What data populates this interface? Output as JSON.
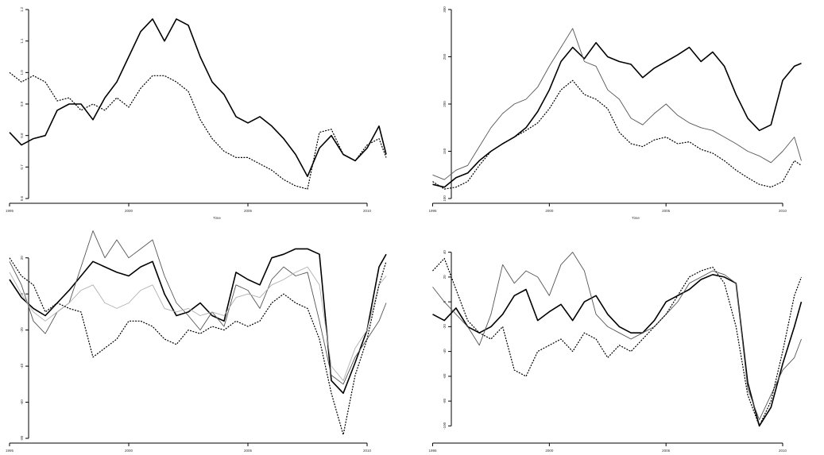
{
  "chart_data": [
    {
      "type": "line",
      "xlabel": "Time",
      "ylabel": "",
      "xlim": [
        1995.8,
        2011.6
      ],
      "ylim": [
        0.6,
        1.2
      ],
      "x_ticks": [
        1995,
        2000,
        2005,
        2010
      ],
      "x_tick_labels": [
        "1995",
        "2000",
        "2005",
        "2010"
      ],
      "y_ticks": [
        0.6,
        0.7,
        0.8,
        0.9,
        1.0,
        1.1,
        1.2
      ],
      "y_tick_labels": [
        "0.6",
        "0.7",
        "0.8",
        "0.9",
        "1.0",
        "1.1",
        "1.2"
      ],
      "grid": false,
      "legend": "none",
      "series": [
        {
          "style": "solid-bold",
          "color": "#000000",
          "x": [
            1995.0,
            1995.5,
            1996.0,
            1996.5,
            1997.0,
            1997.5,
            1998.0,
            1998.5,
            1999.0,
            1999.5,
            2000.0,
            2000.5,
            2001.0,
            2001.5,
            2002.0,
            2002.5,
            2003.0,
            2003.5,
            2004.0,
            2004.5,
            2005.0,
            2005.5,
            2006.0,
            2006.5,
            2007.0,
            2007.5,
            2008.0,
            2008.5,
            2009.0,
            2009.5,
            2010.0,
            2010.5,
            2010.8
          ],
          "y": [
            0.81,
            0.77,
            0.79,
            0.8,
            0.88,
            0.9,
            0.9,
            0.85,
            0.92,
            0.97,
            1.05,
            1.13,
            1.17,
            1.1,
            1.17,
            1.15,
            1.05,
            0.97,
            0.93,
            0.86,
            0.84,
            0.86,
            0.83,
            0.79,
            0.74,
            0.67,
            0.76,
            0.8,
            0.74,
            0.72,
            0.76,
            0.83,
            0.74
          ]
        },
        {
          "style": "dotted",
          "color": "#000000",
          "x": [
            1995.0,
            1995.5,
            1996.0,
            1996.5,
            1997.0,
            1997.5,
            1998.0,
            1998.5,
            1999.0,
            1999.5,
            2000.0,
            2000.5,
            2001.0,
            2001.5,
            2002.0,
            2002.5,
            2003.0,
            2003.5,
            2004.0,
            2004.5,
            2005.0,
            2005.5,
            2006.0,
            2006.5,
            2007.0,
            2007.5,
            2008.0,
            2008.5,
            2009.0,
            2009.5,
            2010.0,
            2010.5,
            2010.8
          ],
          "y": [
            1.0,
            0.97,
            0.99,
            0.97,
            0.91,
            0.92,
            0.88,
            0.9,
            0.88,
            0.92,
            0.89,
            0.95,
            0.99,
            0.99,
            0.97,
            0.94,
            0.85,
            0.79,
            0.75,
            0.73,
            0.73,
            0.71,
            0.69,
            0.66,
            0.64,
            0.63,
            0.81,
            0.82,
            0.74,
            0.72,
            0.77,
            0.79,
            0.73
          ]
        }
      ]
    },
    {
      "type": "line",
      "xlabel": "Time",
      "ylabel": "",
      "xlim": [
        1995.8,
        2011.6
      ],
      "ylim": [
        100,
        300
      ],
      "x_ticks": [
        1995,
        2000,
        2005,
        2010
      ],
      "x_tick_labels": [
        "1995",
        "2000",
        "2005",
        "2010"
      ],
      "y_ticks": [
        100,
        150,
        200,
        250,
        300
      ],
      "y_tick_labels": [
        "100",
        "150",
        "200",
        "250",
        "300"
      ],
      "grid": false,
      "legend": "none",
      "series": [
        {
          "style": "solid-bold",
          "color": "#000000",
          "x": [
            1995.0,
            1995.5,
            1996.0,
            1996.5,
            1997.0,
            1997.5,
            1998.0,
            1998.5,
            1999.0,
            1999.5,
            2000.0,
            2000.5,
            2001.0,
            2001.5,
            2002.0,
            2002.5,
            2003.0,
            2003.5,
            2004.0,
            2004.5,
            2005.0,
            2005.5,
            2006.0,
            2006.5,
            2007.0,
            2007.5,
            2008.0,
            2008.5,
            2009.0,
            2009.5,
            2010.0,
            2010.5,
            2010.8
          ],
          "y": [
            115,
            112,
            122,
            127,
            140,
            150,
            158,
            165,
            175,
            192,
            215,
            245,
            260,
            248,
            265,
            250,
            245,
            242,
            228,
            238,
            245,
            252,
            260,
            245,
            255,
            240,
            210,
            185,
            172,
            178,
            225,
            240,
            243
          ]
        },
        {
          "style": "solid-thin",
          "color": "#555555",
          "x": [
            1995.0,
            1995.5,
            1996.0,
            1996.5,
            1997.0,
            1997.5,
            1998.0,
            1998.5,
            1999.0,
            1999.5,
            2000.0,
            2000.5,
            2001.0,
            2001.5,
            2002.0,
            2002.5,
            2003.0,
            2003.5,
            2004.0,
            2004.5,
            2005.0,
            2005.5,
            2006.0,
            2006.5,
            2007.0,
            2007.5,
            2008.0,
            2008.5,
            2009.0,
            2009.5,
            2010.0,
            2010.5,
            2010.8
          ],
          "y": [
            125,
            120,
            130,
            135,
            155,
            175,
            190,
            200,
            205,
            218,
            240,
            260,
            280,
            245,
            240,
            215,
            205,
            185,
            178,
            190,
            200,
            188,
            180,
            175,
            172,
            165,
            158,
            150,
            145,
            138,
            150,
            165,
            140
          ]
        },
        {
          "style": "dotted",
          "color": "#000000",
          "x": [
            1995.0,
            1995.5,
            1996.0,
            1996.5,
            1997.0,
            1997.5,
            1998.0,
            1998.5,
            1999.0,
            1999.5,
            2000.0,
            2000.5,
            2001.0,
            2001.5,
            2002.0,
            2002.5,
            2003.0,
            2003.5,
            2004.0,
            2004.5,
            2005.0,
            2005.5,
            2006.0,
            2006.5,
            2007.0,
            2007.5,
            2008.0,
            2008.5,
            2009.0,
            2009.5,
            2010.0,
            2010.5,
            2010.8
          ],
          "y": [
            118,
            110,
            112,
            118,
            135,
            150,
            158,
            165,
            172,
            180,
            195,
            215,
            225,
            210,
            205,
            195,
            170,
            158,
            155,
            162,
            165,
            158,
            160,
            152,
            148,
            140,
            130,
            122,
            115,
            112,
            118,
            140,
            135
          ]
        }
      ]
    },
    {
      "type": "line",
      "xlabel": "",
      "ylabel": "",
      "xlim": [
        1995.8,
        2011.6
      ],
      "ylim": [
        -80,
        30
      ],
      "x_ticks": [
        1995,
        2000,
        2005,
        2010
      ],
      "x_tick_labels": [
        "1995",
        "2000",
        "2005",
        "2010"
      ],
      "y_ticks": [
        -80,
        -60,
        -40,
        -20,
        0,
        20
      ],
      "y_tick_labels": [
        "-80",
        "-60",
        "-40",
        "-20",
        "0",
        "20"
      ],
      "grid": false,
      "legend": "none",
      "series": [
        {
          "style": "solid-bold",
          "color": "#000000",
          "x": [
            1995.0,
            1995.5,
            1996.0,
            1996.5,
            1997.0,
            1997.5,
            1998.0,
            1998.5,
            1999.0,
            1999.5,
            2000.0,
            2000.5,
            2001.0,
            2001.5,
            2002.0,
            2002.5,
            2003.0,
            2003.5,
            2004.0,
            2004.5,
            2005.0,
            2005.5,
            2006.0,
            2006.5,
            2007.0,
            2007.5,
            2008.0,
            2008.5,
            2009.0,
            2009.5,
            2010.0,
            2010.5,
            2010.8
          ],
          "y": [
            8,
            -2,
            -8,
            -12,
            -5,
            2,
            10,
            18,
            15,
            12,
            10,
            15,
            18,
            0,
            -12,
            -10,
            -5,
            -12,
            -15,
            12,
            8,
            5,
            20,
            22,
            25,
            25,
            22,
            -48,
            -55,
            -38,
            -20,
            15,
            22
          ]
        },
        {
          "style": "solid-thin",
          "color": "#555555",
          "x": [
            1995.0,
            1995.5,
            1996.0,
            1996.5,
            1997.0,
            1997.5,
            1998.0,
            1998.5,
            1999.0,
            1999.5,
            2000.0,
            2000.5,
            2001.0,
            2001.5,
            2002.0,
            2002.5,
            2003.0,
            2003.5,
            2004.0,
            2004.5,
            2005.0,
            2005.5,
            2006.0,
            2006.5,
            2007.0,
            2007.5,
            2008.0,
            2008.5,
            2009.0,
            2009.5,
            2010.0,
            2010.5,
            2010.8
          ],
          "y": [
            18,
            5,
            -15,
            -22,
            -10,
            -5,
            15,
            35,
            20,
            30,
            20,
            25,
            30,
            10,
            -5,
            -12,
            -20,
            -10,
            -18,
            5,
            2,
            -8,
            8,
            15,
            10,
            12,
            -15,
            -45,
            -50,
            -35,
            -25,
            -15,
            -5
          ]
        },
        {
          "style": "solid-thin",
          "color": "#b0b0b0",
          "x": [
            1995.0,
            1995.5,
            1996.0,
            1996.5,
            1997.0,
            1997.5,
            1998.0,
            1998.5,
            1999.0,
            1999.5,
            2000.0,
            2000.5,
            2001.0,
            2001.5,
            2002.0,
            2002.5,
            2003.0,
            2003.5,
            2004.0,
            2004.5,
            2005.0,
            2005.5,
            2006.0,
            2006.5,
            2007.0,
            2007.5,
            2008.0,
            2008.5,
            2009.0,
            2009.5,
            2010.0,
            2010.5,
            2010.8
          ],
          "y": [
            12,
            0,
            -10,
            -15,
            -10,
            -5,
            2,
            5,
            -5,
            -8,
            -5,
            2,
            5,
            -8,
            -10,
            -8,
            -12,
            -10,
            -12,
            -2,
            0,
            -2,
            5,
            8,
            12,
            15,
            5,
            -40,
            -48,
            -30,
            -20,
            5,
            10
          ]
        },
        {
          "style": "dotted",
          "color": "#000000",
          "x": [
            1995.0,
            1995.5,
            1996.0,
            1996.5,
            1997.0,
            1997.5,
            1998.0,
            1998.5,
            1999.0,
            1999.5,
            2000.0,
            2000.5,
            2001.0,
            2001.5,
            2002.0,
            2002.5,
            2003.0,
            2003.5,
            2004.0,
            2004.5,
            2005.0,
            2005.5,
            2006.0,
            2006.5,
            2007.0,
            2007.5,
            2008.0,
            2008.5,
            2009.0,
            2009.5,
            2010.0,
            2010.5,
            2010.8
          ],
          "y": [
            20,
            10,
            5,
            -10,
            -5,
            -8,
            -10,
            -35,
            -30,
            -25,
            -15,
            -15,
            -18,
            -25,
            -28,
            -20,
            -22,
            -18,
            -20,
            -15,
            -18,
            -15,
            -5,
            0,
            -5,
            -8,
            -25,
            -55,
            -78,
            -45,
            -25,
            5,
            18
          ]
        }
      ]
    },
    {
      "type": "line",
      "xlabel": "",
      "ylabel": "",
      "xlim": [
        1995.8,
        2011.6
      ],
      "ylim": [
        -110,
        50
      ],
      "x_ticks": [
        1995,
        2000,
        2005,
        2010
      ],
      "x_tick_labels": [
        "1995",
        "2000",
        "2005",
        "2010"
      ],
      "y_ticks": [
        -100,
        -80,
        -60,
        -40,
        -20,
        0,
        20,
        40
      ],
      "y_tick_labels": [
        "-100",
        "-80",
        "-60",
        "-40",
        "-20",
        "0",
        "20",
        "40"
      ],
      "grid": false,
      "legend": "none",
      "series": [
        {
          "style": "solid-bold",
          "color": "#000000",
          "x": [
            1995.0,
            1995.5,
            1996.0,
            1996.5,
            1997.0,
            1997.5,
            1998.0,
            1998.5,
            1999.0,
            1999.5,
            2000.0,
            2000.5,
            2001.0,
            2001.5,
            2002.0,
            2002.5,
            2003.0,
            2003.5,
            2004.0,
            2004.5,
            2005.0,
            2005.5,
            2006.0,
            2006.5,
            2007.0,
            2007.5,
            2008.0,
            2008.5,
            2009.0,
            2009.5,
            2010.0,
            2010.5,
            2010.8
          ],
          "y": [
            -10,
            -15,
            -5,
            -20,
            -25,
            -20,
            -10,
            5,
            10,
            -15,
            -8,
            -2,
            -15,
            0,
            5,
            -10,
            -20,
            -25,
            -25,
            -15,
            0,
            5,
            10,
            18,
            22,
            20,
            15,
            -65,
            -100,
            -85,
            -50,
            -20,
            0
          ]
        },
        {
          "style": "solid-thin",
          "color": "#555555",
          "x": [
            1995.0,
            1995.5,
            1996.0,
            1996.5,
            1997.0,
            1997.5,
            1998.0,
            1998.5,
            1999.0,
            1999.5,
            2000.0,
            2000.5,
            2001.0,
            2001.5,
            2002.0,
            2002.5,
            2003.0,
            2003.5,
            2004.0,
            2004.5,
            2005.0,
            2005.5,
            2006.0,
            2006.5,
            2007.0,
            2007.5,
            2008.0,
            2008.5,
            2009.0,
            2009.5,
            2010.0,
            2010.5,
            2010.8
          ],
          "y": [
            12,
            0,
            -10,
            -20,
            -35,
            -10,
            30,
            15,
            25,
            20,
            5,
            30,
            40,
            25,
            -10,
            -20,
            -25,
            -30,
            -25,
            -20,
            -10,
            0,
            15,
            20,
            25,
            22,
            15,
            -70,
            -95,
            -75,
            -55,
            -45,
            -30
          ]
        },
        {
          "style": "dotted",
          "color": "#000000",
          "x": [
            1995.0,
            1995.5,
            1996.0,
            1996.5,
            1997.0,
            1997.5,
            1998.0,
            1998.5,
            1999.0,
            1999.5,
            2000.0,
            2000.5,
            2001.0,
            2001.5,
            2002.0,
            2002.5,
            2003.0,
            2003.5,
            2004.0,
            2004.5,
            2005.0,
            2005.5,
            2006.0,
            2006.5,
            2007.0,
            2007.5,
            2008.0,
            2008.5,
            2009.0,
            2009.5,
            2010.0,
            2010.5,
            2010.8
          ],
          "y": [
            25,
            35,
            10,
            -15,
            -25,
            -30,
            -20,
            -55,
            -60,
            -40,
            -35,
            -30,
            -40,
            -25,
            -30,
            -45,
            -35,
            -40,
            -30,
            -20,
            -10,
            5,
            20,
            25,
            28,
            15,
            -20,
            -75,
            -100,
            -80,
            -40,
            5,
            20
          ]
        }
      ]
    }
  ]
}
